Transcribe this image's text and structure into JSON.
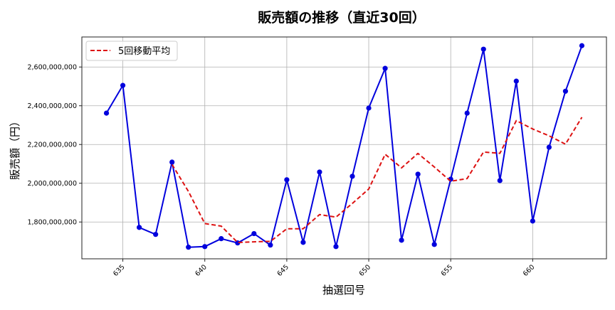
{
  "chart_data": {
    "type": "line",
    "title": "販売額の推移（直近30回）",
    "xlabel": "抽選回号",
    "ylabel": "販売額（円）",
    "x": [
      634,
      635,
      636,
      637,
      638,
      639,
      640,
      641,
      642,
      643,
      644,
      645,
      646,
      647,
      648,
      649,
      650,
      651,
      652,
      653,
      654,
      655,
      656,
      657,
      658,
      659,
      660,
      661,
      662,
      663
    ],
    "series": [
      {
        "name": "販売額",
        "color": "#0000dd",
        "style": "solid",
        "marker": "circle",
        "show_in_legend": false,
        "values": [
          2362000000,
          2505000000,
          1772000000,
          1736000000,
          2109000000,
          1670000000,
          1673000000,
          1714000000,
          1692000000,
          1740000000,
          1681000000,
          2018000000,
          1695000000,
          2058000000,
          1673000000,
          2036000000,
          2388000000,
          2593000000,
          1706000000,
          2047000000,
          1684000000,
          2021000000,
          2362000000,
          2692000000,
          2014000000,
          2527000000,
          1805000000,
          2186000000,
          2475000000,
          2710000000
        ]
      },
      {
        "name": "5回移動平均",
        "color": "#dd1111",
        "style": "dashed",
        "marker": "none",
        "show_in_legend": true,
        "values": [
          null,
          null,
          null,
          null,
          2096800000,
          1958000000,
          1792000000,
          1778800000,
          1694400000,
          1697800000,
          1700000000,
          1765000000,
          1765200000,
          1838400000,
          1825000000,
          1896000000,
          1970000000,
          2149600000,
          2079200000,
          2154000000,
          2083600000,
          2010200000,
          2024000000,
          2161200000,
          2154600000,
          2323200000,
          2280000000,
          2244800000,
          2201400000,
          2340600000
        ]
      }
    ],
    "xticks": [
      635,
      640,
      645,
      650,
      655,
      660
    ],
    "yticks": [
      1800000000,
      2000000000,
      2200000000,
      2400000000,
      2600000000
    ],
    "ytick_labels": [
      "1,800,000,000",
      "2,000,000,000",
      "2,200,000,000",
      "2,400,000,000",
      "2,600,000,000"
    ],
    "xlim": [
      632.5,
      664.5
    ],
    "ylim": [
      1610000000,
      2755000000
    ],
    "grid": true,
    "legend_position": "upper left",
    "xtick_rotation": -45
  }
}
